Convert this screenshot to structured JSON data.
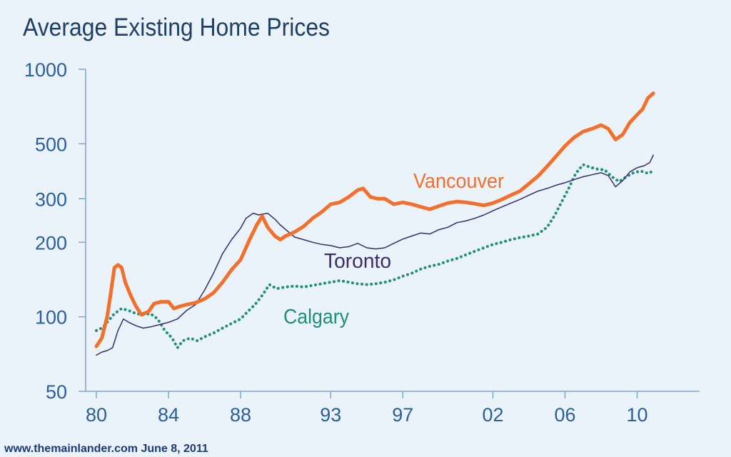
{
  "chart_data": {
    "type": "line",
    "title": "Average Existing Home Prices",
    "xlabel": "",
    "ylabel": "",
    "y_scale": "log",
    "ylim": [
      50,
      1000
    ],
    "y_ticks": [
      "1000",
      "500",
      "300",
      "200",
      "100",
      "50"
    ],
    "x_ticks": [
      "80",
      "84",
      "88",
      "93",
      "97",
      "02",
      "06",
      "10"
    ],
    "x_tick_years": [
      1980,
      1984,
      1988,
      1993,
      1997,
      2002,
      2006,
      2010
    ],
    "grid": false,
    "series": [
      {
        "name": "Vancouver",
        "color": "#f36f2c",
        "style": "thick",
        "points": [
          [
            1980.0,
            76
          ],
          [
            1980.3,
            82
          ],
          [
            1980.6,
            100
          ],
          [
            1980.8,
            125
          ],
          [
            1981.0,
            158
          ],
          [
            1981.2,
            162
          ],
          [
            1981.4,
            158
          ],
          [
            1981.6,
            138
          ],
          [
            1981.9,
            122
          ],
          [
            1982.2,
            110
          ],
          [
            1982.5,
            102
          ],
          [
            1982.9,
            105
          ],
          [
            1983.2,
            113
          ],
          [
            1983.6,
            115
          ],
          [
            1984.0,
            115
          ],
          [
            1984.3,
            108
          ],
          [
            1984.6,
            110
          ],
          [
            1985.0,
            112
          ],
          [
            1985.5,
            114
          ],
          [
            1986.0,
            118
          ],
          [
            1986.5,
            125
          ],
          [
            1987.0,
            138
          ],
          [
            1987.5,
            155
          ],
          [
            1988.0,
            170
          ],
          [
            1988.5,
            205
          ],
          [
            1988.9,
            235
          ],
          [
            1989.2,
            255
          ],
          [
            1989.5,
            230
          ],
          [
            1989.9,
            212
          ],
          [
            1990.2,
            205
          ],
          [
            1990.5,
            212
          ],
          [
            1991.0,
            220
          ],
          [
            1991.5,
            232
          ],
          [
            1992.0,
            250
          ],
          [
            1992.5,
            265
          ],
          [
            1993.0,
            285
          ],
          [
            1993.5,
            290
          ],
          [
            1994.0,
            305
          ],
          [
            1994.5,
            325
          ],
          [
            1994.8,
            330
          ],
          [
            1995.2,
            305
          ],
          [
            1995.6,
            300
          ],
          [
            1996.0,
            300
          ],
          [
            1996.5,
            285
          ],
          [
            1997.0,
            290
          ],
          [
            1997.5,
            285
          ],
          [
            1998.0,
            278
          ],
          [
            1998.5,
            272
          ],
          [
            1999.0,
            280
          ],
          [
            1999.5,
            288
          ],
          [
            2000.0,
            292
          ],
          [
            2000.5,
            290
          ],
          [
            2001.0,
            286
          ],
          [
            2001.5,
            282
          ],
          [
            2002.0,
            288
          ],
          [
            2002.5,
            298
          ],
          [
            2003.0,
            310
          ],
          [
            2003.5,
            322
          ],
          [
            2004.0,
            345
          ],
          [
            2004.5,
            370
          ],
          [
            2005.0,
            405
          ],
          [
            2005.5,
            445
          ],
          [
            2006.0,
            490
          ],
          [
            2006.5,
            530
          ],
          [
            2007.0,
            560
          ],
          [
            2007.5,
            575
          ],
          [
            2008.0,
            595
          ],
          [
            2008.4,
            575
          ],
          [
            2008.8,
            520
          ],
          [
            2009.2,
            545
          ],
          [
            2009.6,
            610
          ],
          [
            2010.0,
            655
          ],
          [
            2010.3,
            690
          ],
          [
            2010.6,
            765
          ],
          [
            2010.9,
            800
          ]
        ]
      },
      {
        "name": "Toronto",
        "color": "#3a2c6e",
        "style": "thin",
        "points": [
          [
            1980.0,
            70
          ],
          [
            1980.3,
            72
          ],
          [
            1980.6,
            73
          ],
          [
            1980.9,
            75
          ],
          [
            1981.2,
            88
          ],
          [
            1981.5,
            98
          ],
          [
            1981.8,
            95
          ],
          [
            1982.2,
            92
          ],
          [
            1982.6,
            90
          ],
          [
            1983.0,
            91
          ],
          [
            1983.5,
            93
          ],
          [
            1984.0,
            95
          ],
          [
            1984.5,
            98
          ],
          [
            1985.0,
            106
          ],
          [
            1985.5,
            112
          ],
          [
            1986.0,
            128
          ],
          [
            1986.5,
            150
          ],
          [
            1987.0,
            180
          ],
          [
            1987.5,
            205
          ],
          [
            1988.0,
            228
          ],
          [
            1988.3,
            250
          ],
          [
            1988.7,
            262
          ],
          [
            1989.0,
            258
          ],
          [
            1989.5,
            262
          ],
          [
            1989.9,
            248
          ],
          [
            1990.2,
            235
          ],
          [
            1990.6,
            222
          ],
          [
            1991.0,
            210
          ],
          [
            1991.5,
            205
          ],
          [
            1992.0,
            200
          ],
          [
            1992.5,
            196
          ],
          [
            1993.0,
            194
          ],
          [
            1993.5,
            190
          ],
          [
            1994.0,
            192
          ],
          [
            1994.5,
            198
          ],
          [
            1995.0,
            190
          ],
          [
            1995.5,
            188
          ],
          [
            1996.0,
            190
          ],
          [
            1996.5,
            198
          ],
          [
            1997.0,
            206
          ],
          [
            1997.5,
            212
          ],
          [
            1998.0,
            218
          ],
          [
            1998.5,
            216
          ],
          [
            1999.0,
            225
          ],
          [
            1999.5,
            230
          ],
          [
            2000.0,
            240
          ],
          [
            2000.5,
            244
          ],
          [
            2001.0,
            250
          ],
          [
            2001.5,
            258
          ],
          [
            2002.0,
            268
          ],
          [
            2002.5,
            278
          ],
          [
            2003.0,
            288
          ],
          [
            2003.5,
            298
          ],
          [
            2004.0,
            310
          ],
          [
            2004.5,
            322
          ],
          [
            2005.0,
            330
          ],
          [
            2005.5,
            340
          ],
          [
            2006.0,
            348
          ],
          [
            2006.5,
            358
          ],
          [
            2007.0,
            368
          ],
          [
            2007.5,
            375
          ],
          [
            2008.0,
            382
          ],
          [
            2008.4,
            372
          ],
          [
            2008.8,
            335
          ],
          [
            2009.2,
            355
          ],
          [
            2009.6,
            385
          ],
          [
            2010.0,
            400
          ],
          [
            2010.4,
            408
          ],
          [
            2010.7,
            420
          ],
          [
            2010.9,
            450
          ]
        ]
      },
      {
        "name": "Calgary",
        "color": "#1f8f7a",
        "style": "dotted",
        "points": [
          [
            1980.0,
            88
          ],
          [
            1980.3,
            90
          ],
          [
            1980.6,
            95
          ],
          [
            1981.0,
            103
          ],
          [
            1981.4,
            108
          ],
          [
            1981.8,
            106
          ],
          [
            1982.2,
            103
          ],
          [
            1982.6,
            102
          ],
          [
            1983.0,
            103
          ],
          [
            1983.4,
            98
          ],
          [
            1983.8,
            88
          ],
          [
            1984.2,
            82
          ],
          [
            1984.5,
            75
          ],
          [
            1984.8,
            80
          ],
          [
            1985.2,
            82
          ],
          [
            1985.6,
            80
          ],
          [
            1986.0,
            83
          ],
          [
            1986.5,
            86
          ],
          [
            1987.0,
            90
          ],
          [
            1987.5,
            94
          ],
          [
            1988.0,
            98
          ],
          [
            1988.4,
            105
          ],
          [
            1988.8,
            112
          ],
          [
            1989.2,
            122
          ],
          [
            1989.6,
            135
          ],
          [
            1990.0,
            130
          ],
          [
            1990.5,
            132
          ],
          [
            1991.0,
            133
          ],
          [
            1991.5,
            132
          ],
          [
            1992.0,
            134
          ],
          [
            1992.5,
            136
          ],
          [
            1993.0,
            138
          ],
          [
            1993.5,
            140
          ],
          [
            1994.0,
            138
          ],
          [
            1994.5,
            136
          ],
          [
            1995.0,
            135
          ],
          [
            1995.5,
            136
          ],
          [
            1996.0,
            138
          ],
          [
            1996.5,
            141
          ],
          [
            1997.0,
            146
          ],
          [
            1997.5,
            150
          ],
          [
            1998.0,
            156
          ],
          [
            1998.5,
            160
          ],
          [
            1999.0,
            163
          ],
          [
            1999.5,
            168
          ],
          [
            2000.0,
            172
          ],
          [
            2000.5,
            178
          ],
          [
            2001.0,
            184
          ],
          [
            2001.5,
            190
          ],
          [
            2002.0,
            196
          ],
          [
            2002.5,
            200
          ],
          [
            2003.0,
            205
          ],
          [
            2003.5,
            209
          ],
          [
            2004.0,
            212
          ],
          [
            2004.5,
            216
          ],
          [
            2005.0,
            230
          ],
          [
            2005.4,
            255
          ],
          [
            2005.8,
            290
          ],
          [
            2006.2,
            330
          ],
          [
            2006.6,
            380
          ],
          [
            2007.0,
            412
          ],
          [
            2007.4,
            402
          ],
          [
            2007.8,
            395
          ],
          [
            2008.2,
            392
          ],
          [
            2008.6,
            368
          ],
          [
            2009.0,
            352
          ],
          [
            2009.4,
            368
          ],
          [
            2009.8,
            382
          ],
          [
            2010.2,
            388
          ],
          [
            2010.6,
            380
          ],
          [
            2010.9,
            388
          ]
        ]
      }
    ],
    "annotations": [
      {
        "series": "Vancouver",
        "text": "Vancouver"
      },
      {
        "series": "Toronto",
        "text": "Toronto"
      },
      {
        "series": "Calgary",
        "text": "Calgary"
      }
    ]
  },
  "footer": {
    "credit": "www.themainlander.com June 8, 2011"
  },
  "colors": {
    "background": "#eaf2fa",
    "axis": "#7fa6cd",
    "tick_text": "#2b5fa0",
    "title_text": "#1f3f66",
    "credit_text": "#1d3a7a"
  }
}
